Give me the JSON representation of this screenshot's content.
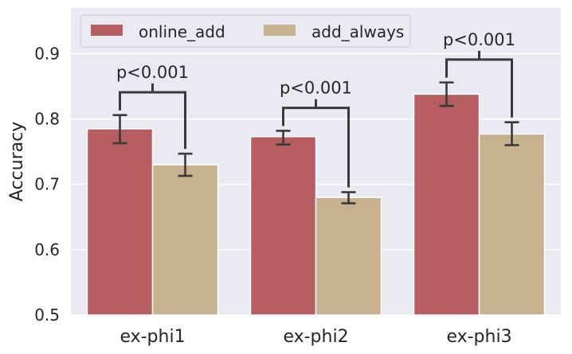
{
  "chart_data": {
    "type": "bar",
    "categories": [
      "ex-phi1",
      "ex-phi2",
      "ex-phi3"
    ],
    "series": [
      {
        "name": "online_add",
        "color": "#b55d60",
        "values": [
          0.785,
          0.773,
          0.838
        ],
        "error_low": [
          0.763,
          0.761,
          0.82
        ],
        "error_high": [
          0.806,
          0.782,
          0.856
        ]
      },
      {
        "name": "add_always",
        "color": "#c8b18f",
        "values": [
          0.73,
          0.68,
          0.777
        ],
        "error_low": [
          0.713,
          0.671,
          0.76
        ],
        "error_high": [
          0.747,
          0.688,
          0.795
        ]
      }
    ],
    "xlabel": "",
    "ylabel": "Accuracy",
    "ylim": [
      0.5,
      0.97
    ],
    "yticks": [
      "0.5",
      "0.6",
      "0.7",
      "0.8",
      "0.9"
    ],
    "grid": true,
    "legend_position": "top-left",
    "background_color": "#eaeaf2",
    "annotations": [
      {
        "category": "ex-phi1",
        "text": "p<0.001"
      },
      {
        "category": "ex-phi2",
        "text": "p<0.001"
      },
      {
        "category": "ex-phi3",
        "text": "p<0.001"
      }
    ]
  }
}
